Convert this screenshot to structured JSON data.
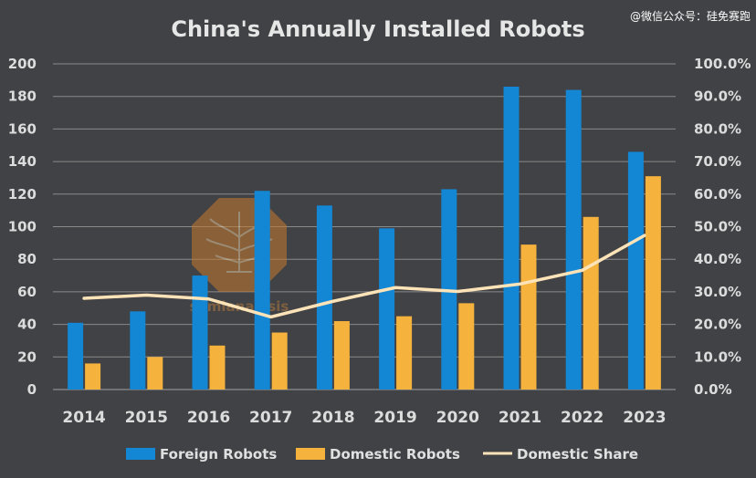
{
  "watermark": "@微信公众号：硅免赛跑",
  "logo_text": "semianalysis",
  "colors": {
    "background": "#414246",
    "foreign": "#1386d4",
    "domestic": "#f5b23c",
    "share": "#fde3b8",
    "grid": "#8a8a8a"
  },
  "chart_data": {
    "type": "bar",
    "title": "China's Annually Installed Robots",
    "categories": [
      "2014",
      "2015",
      "2016",
      "2017",
      "2018",
      "2019",
      "2020",
      "2021",
      "2022",
      "2023"
    ],
    "series": [
      {
        "name": "Foreign Robots",
        "type": "bar",
        "axis": "left",
        "values": [
          41,
          48,
          70,
          122,
          113,
          99,
          123,
          186,
          184,
          146
        ]
      },
      {
        "name": "Domestic Robots",
        "type": "bar",
        "axis": "left",
        "values": [
          16,
          20,
          27,
          35,
          42,
          45,
          53,
          89,
          106,
          131
        ]
      },
      {
        "name": "Domestic Share",
        "type": "line",
        "axis": "right",
        "values": [
          28.0,
          29.0,
          27.8,
          22.3,
          27.1,
          31.3,
          30.1,
          32.4,
          36.6,
          47.3
        ]
      }
    ],
    "ylim": [
      0,
      200
    ],
    "yticks": [
      "0",
      "20",
      "40",
      "60",
      "80",
      "100",
      "120",
      "140",
      "160",
      "180",
      "200"
    ],
    "y2lim": [
      0,
      100
    ],
    "y2ticks": [
      "0.0%",
      "10.0%",
      "20.0%",
      "30.0%",
      "40.0%",
      "50.0%",
      "60.0%",
      "70.0%",
      "80.0%",
      "90.0%",
      "100.0%"
    ],
    "grid": true,
    "legend_position": "bottom"
  }
}
